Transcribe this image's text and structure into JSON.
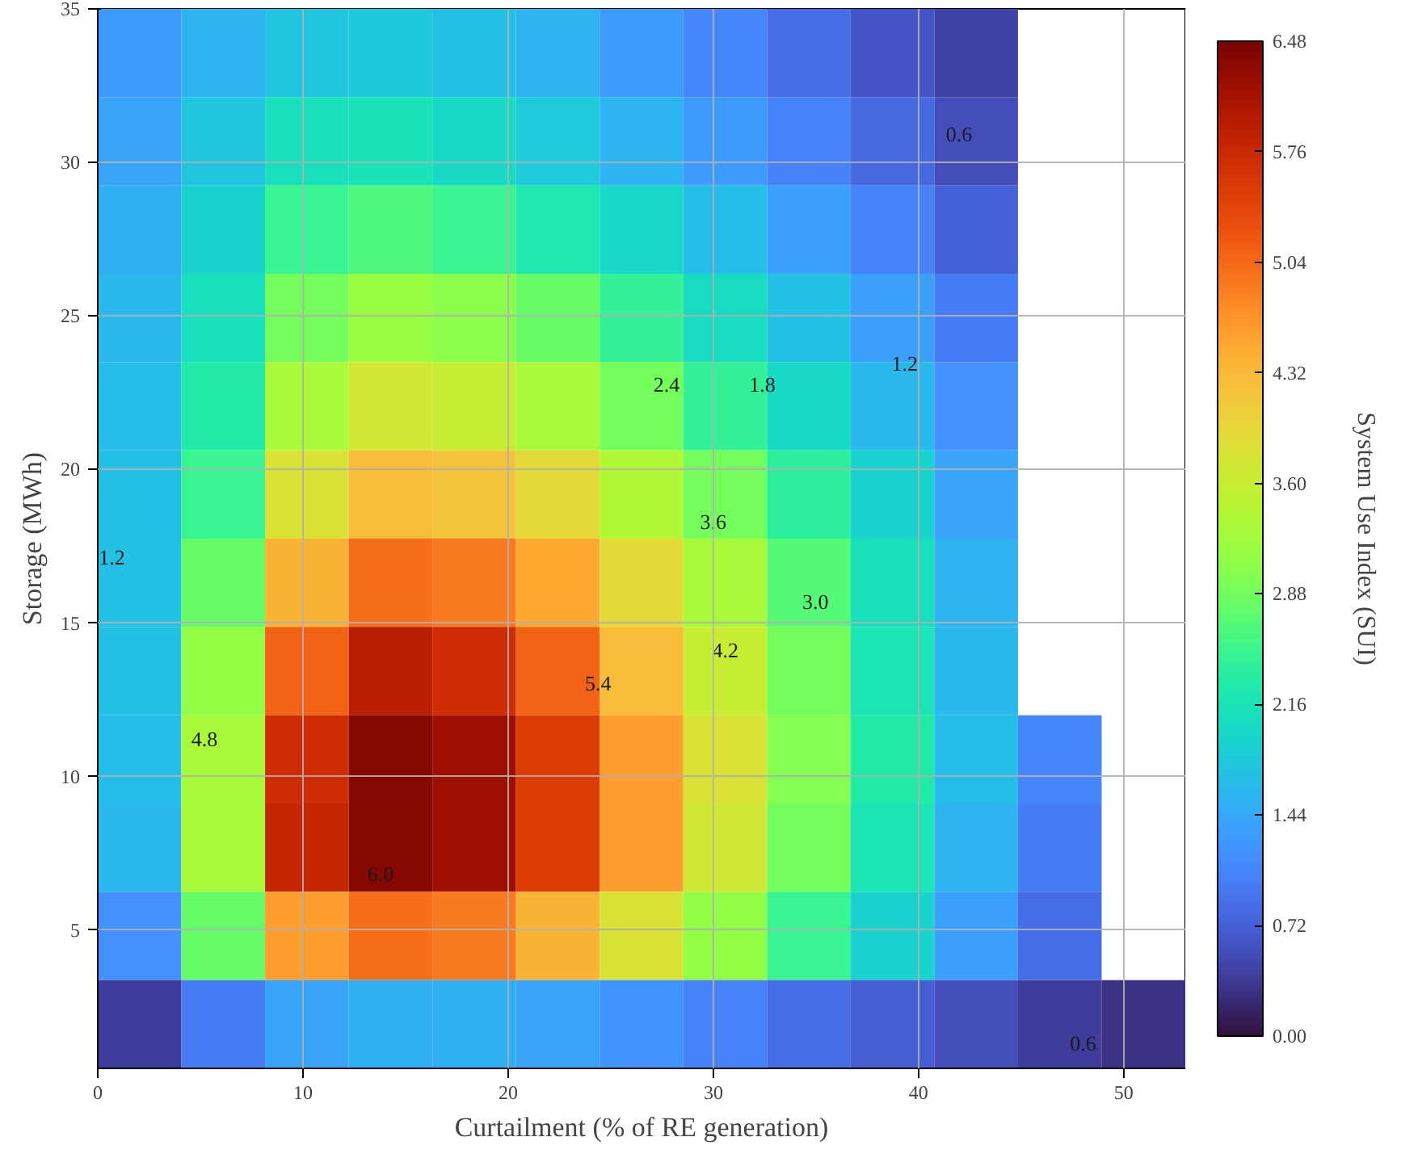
{
  "chart_data": {
    "type": "heatmap",
    "xlabel": "Curtailment (% of RE generation)",
    "ylabel": "Storage (MWh)",
    "clabel": "System Use Index (SUI)",
    "xlim": [
      0,
      53
    ],
    "ylim": [
      0.5,
      35
    ],
    "xticks": [
      0,
      10,
      20,
      30,
      40,
      50
    ],
    "yticks": [
      5,
      10,
      15,
      20,
      25,
      30,
      35
    ],
    "clim": [
      0,
      6.48
    ],
    "cticks": [
      {
        "value": 0,
        "label": "0.00"
      },
      {
        "value": 0.72,
        "label": "0.72"
      },
      {
        "value": 1.44,
        "label": "1.44"
      },
      {
        "value": 2.16,
        "label": "2.16"
      },
      {
        "value": 2.88,
        "label": "2.88"
      },
      {
        "value": 3.6,
        "label": "3.60"
      },
      {
        "value": 4.32,
        "label": "4.32"
      },
      {
        "value": 5.04,
        "label": "5.04"
      },
      {
        "value": 5.76,
        "label": "5.76"
      },
      {
        "value": 6.48,
        "label": "6.48"
      }
    ],
    "grid": true,
    "cells": [
      [
        1.3,
        1.55,
        1.75,
        1.78,
        1.7,
        1.55,
        1.3,
        1.1,
        0.85,
        0.62,
        0.45,
        null,
        null
      ],
      [
        1.4,
        1.75,
        2.1,
        2.15,
        2.0,
        1.8,
        1.55,
        1.3,
        1.05,
        0.8,
        0.55,
        null,
        null
      ],
      [
        1.5,
        1.9,
        2.5,
        2.65,
        2.5,
        2.25,
        1.95,
        1.65,
        1.35,
        1.05,
        0.75,
        null,
        null
      ],
      [
        1.6,
        2.1,
        2.9,
        3.15,
        3.05,
        2.8,
        2.45,
        2.05,
        1.7,
        1.35,
        1.0,
        null,
        null
      ],
      [
        1.65,
        2.3,
        3.3,
        3.7,
        3.6,
        3.3,
        2.9,
        2.45,
        2.0,
        1.6,
        1.2,
        null,
        null
      ],
      [
        1.7,
        2.5,
        3.8,
        4.3,
        4.2,
        3.9,
        3.4,
        2.9,
        2.4,
        1.9,
        1.4,
        null,
        null
      ],
      [
        1.7,
        2.8,
        4.4,
        5.0,
        4.9,
        4.5,
        3.9,
        3.3,
        2.7,
        2.1,
        1.55,
        null,
        null
      ],
      [
        1.7,
        3.1,
        5.1,
        5.9,
        5.7,
        5.1,
        4.3,
        3.6,
        2.9,
        2.2,
        1.6,
        null,
        null
      ],
      [
        1.65,
        3.3,
        5.7,
        6.4,
        6.2,
        5.5,
        4.6,
        3.8,
        3.0,
        2.3,
        1.65,
        1.1,
        null
      ],
      [
        1.6,
        3.3,
        5.8,
        6.4,
        6.2,
        5.5,
        4.6,
        3.7,
        2.9,
        2.2,
        1.55,
        1.0,
        null
      ],
      [
        1.2,
        2.8,
        4.6,
        5.0,
        4.9,
        4.4,
        3.8,
        3.1,
        2.5,
        1.9,
        1.35,
        0.85,
        null
      ],
      [
        0.4,
        1.0,
        1.4,
        1.5,
        1.5,
        1.4,
        1.25,
        1.05,
        0.85,
        0.7,
        0.55,
        0.4,
        0.3
      ]
    ],
    "annotations": [
      "6.0",
      "5.4",
      "4.8",
      "4.2",
      "3.6",
      "3.0",
      "2.4",
      "1.8",
      "1.2",
      "0.6",
      "0.6",
      "1.2"
    ]
  }
}
